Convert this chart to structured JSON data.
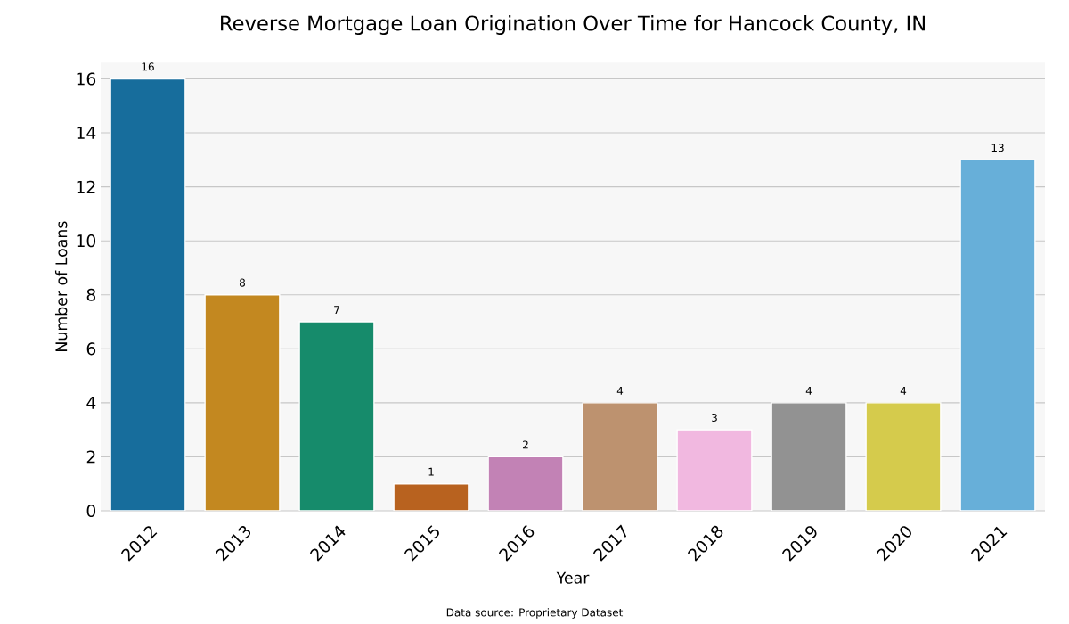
{
  "chart_data": {
    "type": "bar",
    "title": "Reverse Mortgage Loan Origination Over Time for Hancock County, IN",
    "xlabel": "Year",
    "ylabel": "Number of Loans",
    "categories": [
      "2012",
      "2013",
      "2014",
      "2015",
      "2016",
      "2017",
      "2018",
      "2019",
      "2020",
      "2021"
    ],
    "values": [
      16,
      8,
      7,
      1,
      2,
      4,
      3,
      4,
      4,
      13
    ],
    "colors": [
      "#176d9c",
      "#c38820",
      "#168b6b",
      "#b8621f",
      "#c282b5",
      "#bd926f",
      "#f1b8e0",
      "#929292",
      "#d5cb4c",
      "#67afd9"
    ],
    "ylim": [
      0,
      16.6
    ],
    "yticks": [
      0,
      2,
      4,
      6,
      8,
      10,
      12,
      14,
      16
    ],
    "grid": "y",
    "data_labels": true,
    "annotations": [
      "Data source: Proprietary Dataset"
    ]
  }
}
